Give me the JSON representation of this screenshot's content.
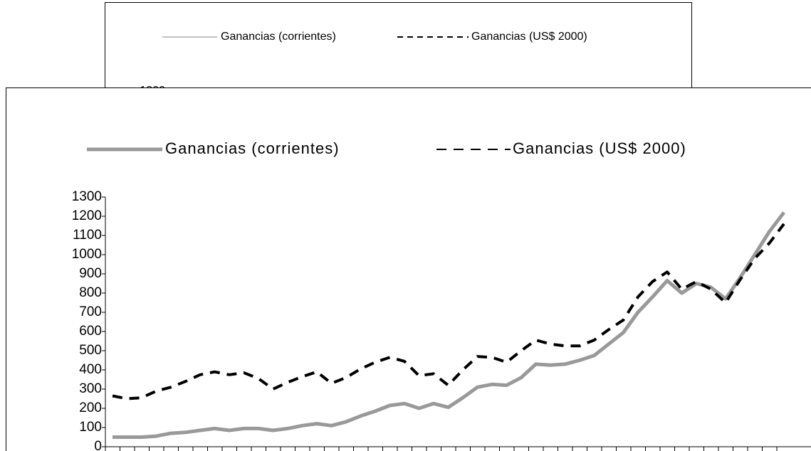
{
  "chart_data": [
    {
      "type": "line",
      "series": [
        {
          "name": "Ganancias (corrientes)",
          "color": "#808080"
        },
        {
          "name": "Ganancias (US$ 2000)",
          "color": "#000000"
        }
      ],
      "yticks": [
        1300
      ]
    },
    {
      "type": "line",
      "categories": [
        null,
        null,
        null,
        null,
        null,
        null,
        null,
        null,
        null,
        null,
        null,
        null,
        null,
        null,
        null,
        null,
        null,
        null,
        null,
        null,
        null,
        null,
        null,
        null,
        null,
        null,
        null,
        null,
        null,
        null,
        null,
        null,
        null,
        null,
        null,
        null,
        null,
        null,
        null,
        null,
        null,
        null,
        null,
        null,
        null,
        null,
        null
      ],
      "series": [
        {
          "name": "Ganancias (corrientes)",
          "color": "#999999",
          "values": [
            50,
            50,
            50,
            55,
            70,
            75,
            85,
            95,
            85,
            95,
            95,
            85,
            95,
            110,
            120,
            110,
            130,
            160,
            185,
            215,
            225,
            200,
            225,
            205,
            255,
            310,
            325,
            320,
            360,
            430,
            425,
            430,
            450,
            475,
            535,
            595,
            700,
            780,
            865,
            800,
            850,
            830,
            770,
            880,
            1000,
            1120,
            1220
          ]
        },
        {
          "name": "Ganancias (US$ 2000)",
          "color": "#000000",
          "dashed": true,
          "values": [
            265,
            250,
            255,
            290,
            310,
            340,
            375,
            390,
            375,
            385,
            355,
            300,
            335,
            365,
            390,
            330,
            360,
            405,
            440,
            465,
            445,
            370,
            380,
            320,
            400,
            470,
            465,
            440,
            500,
            555,
            535,
            525,
            525,
            555,
            610,
            660,
            780,
            860,
            910,
            820,
            860,
            820,
            750,
            870,
            980,
            1060,
            1160
          ]
        }
      ],
      "ylim": [
        0,
        1300
      ],
      "yticks": [
        0,
        100,
        200,
        300,
        400,
        500,
        600,
        700,
        800,
        900,
        1000,
        1100,
        1200,
        1300
      ]
    }
  ]
}
